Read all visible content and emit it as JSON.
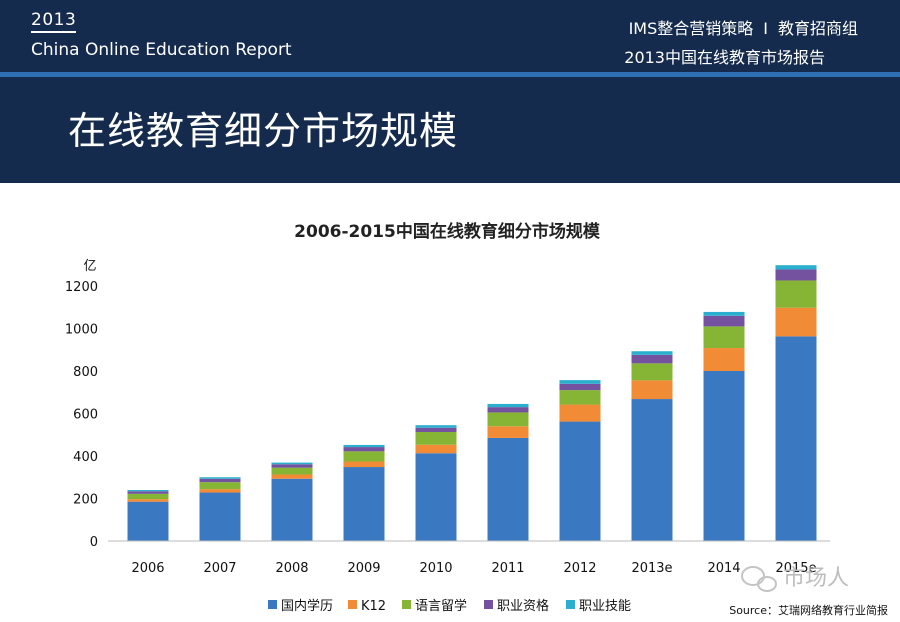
{
  "header": {
    "year": "2013",
    "report_name": "China Online Education Report",
    "org": "IMS整合营销策略",
    "separator": "I",
    "group": "教育招商组",
    "report_cn": "2013中国在线教育市场报告"
  },
  "page_title": "在线教育细分市场规模",
  "source": "Source：艾瑞网络教育行业简报",
  "watermark": "市场人",
  "colors": {
    "header_bg": "#152b4d",
    "header_stripe": "#2f6fb3"
  },
  "chart_data": {
    "type": "bar",
    "stacked": true,
    "title": "2006-2015中国在线教育细分市场规模",
    "ylabel": "亿",
    "xlabel": "",
    "ylim": [
      0,
      1300
    ],
    "yticks": [
      0,
      200,
      400,
      600,
      800,
      1000,
      1200
    ],
    "categories": [
      "2006",
      "2007",
      "2008",
      "2009",
      "2010",
      "2011",
      "2012",
      "2013e",
      "2014",
      "2015e"
    ],
    "series": [
      {
        "name": "国内学历",
        "color": "#3a78c2",
        "values": [
          185,
          228,
          293,
          348,
          413,
          485,
          562,
          668,
          800,
          963
        ]
      },
      {
        "name": "K12",
        "color": "#f28b35",
        "values": [
          12,
          16,
          20,
          26,
          40,
          55,
          80,
          88,
          108,
          135
        ]
      },
      {
        "name": "语言留学",
        "color": "#86b536",
        "values": [
          25,
          33,
          32,
          48,
          60,
          65,
          68,
          80,
          102,
          128
        ]
      },
      {
        "name": "职业资格",
        "color": "#7452a0",
        "values": [
          12,
          16,
          16,
          20,
          20,
          25,
          30,
          40,
          50,
          52
        ]
      },
      {
        "name": "职业技能",
        "color": "#2ab0ce",
        "values": [
          6,
          7,
          8,
          10,
          12,
          15,
          17,
          17,
          18,
          20
        ]
      }
    ],
    "legend_position": "bottom"
  }
}
